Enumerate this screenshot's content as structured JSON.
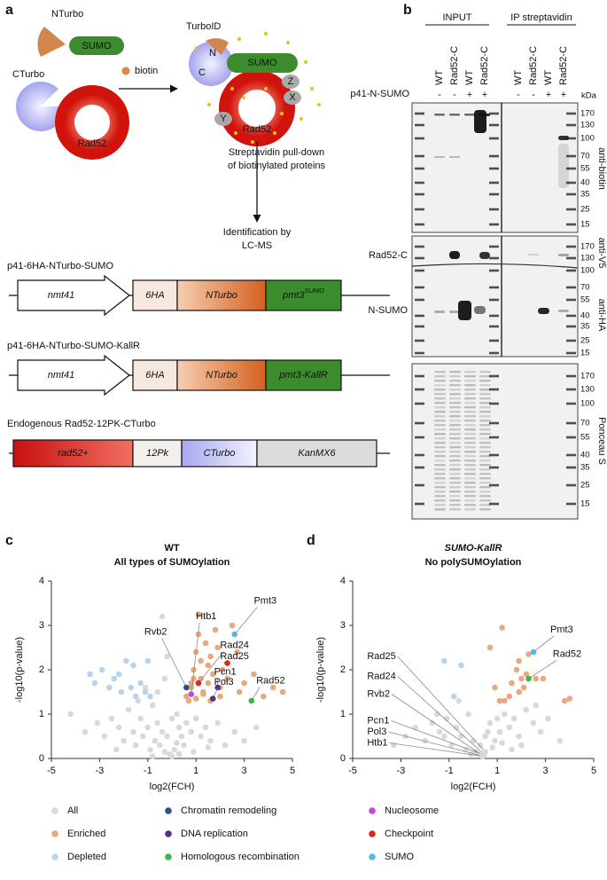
{
  "panel_a": {
    "label": "a",
    "nturbo": "NTurbo",
    "sumo": "SUMO",
    "cturbo": "CTurbo",
    "rad52": "Rad52",
    "biotin": "biotin",
    "turboid": "TurboID",
    "complex": {
      "n": "N",
      "c": "C",
      "sumo": "SUMO",
      "z": "Z",
      "x": "X",
      "y": "Y",
      "rad52": "Rad52"
    },
    "pulldown": [
      "Streptavidin pull-down",
      "of biotinylated proteins"
    ],
    "identification": [
      "Identification by",
      "LC-MS"
    ],
    "constructs": [
      {
        "title": "p41-6HA-NTurbo-SUMO",
        "parts": [
          "nmt41",
          "6HA",
          "NTurbo",
          "pmt3"
        ],
        "sup": "SUMO"
      },
      {
        "title": "p41-6HA-NTurbo-SUMO-KallR",
        "parts": [
          "nmt41",
          "6HA",
          "NTurbo",
          "pmt3-KallR"
        ]
      },
      {
        "title": "Endogenous Rad52-12PK-CTurbo",
        "parts": [
          "rad52+",
          "12Pk",
          "CTurbo",
          "KanMX6"
        ]
      }
    ]
  },
  "panel_b": {
    "label": "b",
    "input": "INPUT",
    "ip": "IP streptavidin",
    "input_lanes": [
      "WT",
      "Rad52-C",
      "WT",
      "Rad52-C"
    ],
    "ip_lanes": [
      "WT",
      "Rad52-C",
      "WT",
      "Rad52-C"
    ],
    "p41_label": "p41-N-SUMO",
    "input_signs": [
      "-",
      "-",
      "+",
      "+"
    ],
    "ip_signs": [
      "-",
      "-",
      "+",
      "+"
    ],
    "kda": "kDa",
    "markers": [
      [
        170,
        130,
        100,
        70,
        55,
        40,
        35,
        25,
        15
      ],
      [
        170,
        130,
        100,
        70,
        55,
        40,
        35,
        25,
        15
      ],
      [
        170,
        130,
        100,
        70,
        55,
        40,
        35,
        25,
        15
      ]
    ],
    "antibodies": [
      "anti-biotin",
      "anti-V5",
      "anti-HA",
      "Ponceau S"
    ],
    "band_labels": [
      "Rad52-C",
      "N-SUMO"
    ]
  },
  "chart_data": [
    {
      "type": "scatter",
      "panel": "c",
      "title": "WT",
      "subtitle": "All types of SUMOylation",
      "xlabel": "log2(FCH)",
      "ylabel": "-log10(p-value)",
      "xlim": [
        -5,
        5
      ],
      "xticks": [
        -5,
        -3,
        -1,
        1,
        3,
        5
      ],
      "ylim": [
        0,
        4
      ],
      "yticks": [
        0,
        1,
        2,
        3,
        4
      ],
      "series": [
        {
          "name": "All",
          "color": "#d9d9d9",
          "x": [
            -4.2,
            -3.6,
            -3.1,
            -2.8,
            -2.5,
            -2.2,
            -2.0,
            -1.8,
            -1.6,
            -1.5,
            -1.3,
            -1.2,
            -1.0,
            -0.9,
            -0.8,
            -0.7,
            -0.6,
            -0.5,
            -0.4,
            -0.3,
            -0.2,
            -0.1,
            0.0,
            0.1,
            0.2,
            0.3,
            0.4,
            0.5,
            -0.6,
            -0.3,
            0.2,
            0.6,
            0.8,
            1.0,
            1.2,
            1.4,
            1.6,
            1.9,
            2.2,
            2.6,
            3.0,
            3.5,
            -1.4,
            -2.3,
            0.3,
            -0.8,
            0.9,
            -1.1,
            1.5,
            -0.4,
            0.0,
            -0.2
          ],
          "y": [
            1.0,
            0.6,
            0.8,
            0.5,
            0.9,
            0.7,
            0.4,
            1.1,
            0.6,
            0.3,
            0.9,
            0.5,
            0.7,
            0.2,
            1.2,
            0.4,
            0.8,
            0.3,
            0.6,
            0.15,
            0.5,
            0.1,
            0.05,
            0.2,
            0.35,
            0.1,
            0.5,
            0.3,
            1.5,
            1.8,
            1.0,
            0.8,
            0.6,
            0.9,
            0.5,
            0.7,
            0.4,
            0.8,
            0.3,
            0.6,
            0.4,
            0.7,
            1.3,
            0.2,
            0.7,
            0.05,
            0.15,
            1.6,
            0.25,
            3.2,
            0.9,
            2.3
          ]
        },
        {
          "name": "Enriched",
          "color": "#e8a97e",
          "x": [
            0.6,
            0.8,
            0.9,
            1.0,
            1.1,
            1.2,
            1.3,
            1.4,
            1.5,
            1.6,
            1.7,
            1.8,
            2.0,
            2.1,
            2.3,
            2.5,
            2.7,
            3.0,
            3.4,
            3.8,
            4.2,
            4.6,
            0.7,
            1.0,
            1.3,
            0.9,
            1.2,
            1.6,
            2.0,
            1.5,
            0.8,
            1.1,
            1.9,
            2.8
          ],
          "y": [
            1.4,
            1.6,
            2.0,
            2.4,
            3.25,
            1.8,
            1.5,
            2.6,
            1.7,
            2.3,
            1.9,
            2.9,
            1.6,
            2.0,
            1.8,
            3.0,
            2.4,
            1.7,
            1.9,
            1.4,
            1.6,
            1.5,
            1.3,
            1.35,
            1.45,
            1.8,
            2.2,
            1.3,
            1.4,
            2.1,
            1.7,
            2.8,
            2.5,
            1.5
          ]
        },
        {
          "name": "Depleted",
          "color": "#b7d4ec",
          "x": [
            -3.4,
            -3.2,
            -2.9,
            -2.6,
            -2.4,
            -2.1,
            -1.9,
            -1.7,
            -1.5,
            -1.3,
            -1.1,
            -0.9,
            -1.6,
            -2.2,
            -1.0
          ],
          "y": [
            1.9,
            1.7,
            2.0,
            1.6,
            1.8,
            1.5,
            2.2,
            1.6,
            1.4,
            1.7,
            1.5,
            1.4,
            2.1,
            1.9,
            2.2
          ]
        },
        {
          "name": "Chromatin remodeling",
          "color": "#2e4d8c",
          "labels": [
            "Rvb2"
          ],
          "x": [
            0.6
          ],
          "y": [
            1.6
          ]
        },
        {
          "name": "DNA replication",
          "color": "#5a2d8c",
          "labels": [
            "Pcn1",
            "Pol3"
          ],
          "x": [
            1.9,
            1.7
          ],
          "y": [
            1.6,
            1.35
          ]
        },
        {
          "name": "Homologous recombination",
          "color": "#3db54a",
          "labels": [
            "Rad52"
          ],
          "x": [
            3.3
          ],
          "y": [
            1.3
          ]
        },
        {
          "name": "Nucleosome",
          "color": "#c446e6",
          "labels": [
            "Htb1"
          ],
          "x": [
            0.8
          ],
          "y": [
            1.45
          ]
        },
        {
          "name": "Checkpoint",
          "color": "#e3261b",
          "labels": [
            "Rad24",
            "Rad25"
          ],
          "x": [
            1.1,
            2.3
          ],
          "y": [
            1.7,
            2.15
          ]
        },
        {
          "name": "SUMO",
          "color": "#5cb6e8",
          "labels": [
            "Pmt3"
          ],
          "x": [
            2.6
          ],
          "y": [
            2.8
          ]
        }
      ]
    },
    {
      "type": "scatter",
      "panel": "d",
      "title": "SUMO-KallR",
      "title_italic": true,
      "subtitle": "No polySUMOylation",
      "xlabel": "log2(FCH)",
      "ylabel": "-log10(p-value)",
      "xlim": [
        -5,
        5
      ],
      "xticks": [
        -5,
        -3,
        -1,
        1,
        3,
        5
      ],
      "ylim": [
        0,
        4
      ],
      "yticks": [
        0,
        1,
        2,
        3,
        4
      ],
      "series": [
        {
          "color": "#d9d9d9",
          "x": [
            -3.3,
            -2.8,
            -2.4,
            -2.0,
            -1.7,
            -1.4,
            -1.1,
            -0.9,
            -0.7,
            -0.5,
            -0.3,
            -0.1,
            0.1,
            0.3,
            0.5,
            0.7,
            0.9,
            1.1,
            1.3,
            1.5,
            1.7,
            1.9,
            2.2,
            2.5,
            2.8,
            3.1,
            3.6,
            -0.6,
            -0.2,
            0.4,
            0.8,
            1.2,
            1.6,
            -1.2,
            2.0,
            2.6,
            -1.5,
            0.0,
            0.6,
            1.0
          ],
          "y": [
            0.3,
            0.5,
            0.7,
            0.4,
            0.8,
            0.6,
            0.9,
            0.3,
            0.7,
            0.5,
            0.2,
            0.1,
            0.15,
            0.3,
            0.5,
            0.8,
            0.4,
            0.6,
            1.0,
            0.7,
            0.9,
            0.5,
            1.1,
            0.8,
            0.6,
            0.9,
            0.4,
            1.3,
            1.0,
            0.05,
            0.25,
            0.35,
            0.2,
            0.5,
            0.3,
            1.2,
            1.0,
            0.4,
            0.6,
            0.9
          ]
        },
        {
          "color": "#e8a97e",
          "x": [
            1.2,
            0.7,
            1.9,
            2.0,
            2.3,
            2.6,
            1.6,
            1.9,
            2.1,
            2.9,
            3.8,
            4.0,
            1.3,
            1.1,
            1.5,
            0.9,
            2.2,
            1.8
          ],
          "y": [
            2.95,
            2.5,
            2.2,
            1.8,
            2.35,
            1.8,
            1.7,
            1.5,
            1.6,
            1.8,
            1.3,
            1.35,
            1.3,
            1.3,
            1.4,
            1.6,
            1.9,
            2.0
          ]
        },
        {
          "color": "#b7d4ec",
          "x": [
            -1.2,
            -0.5,
            -0.8
          ],
          "y": [
            2.2,
            2.1,
            1.4
          ]
        },
        {
          "color": "#2e4d8c",
          "marker_color": "#d9d9d9",
          "labels": [
            "Rvb2"
          ],
          "x": [
            0.3
          ],
          "y": [
            0.1
          ]
        },
        {
          "color": "#5a2d8c",
          "marker_color": "#d9d9d9",
          "labels": [
            "Pcn1",
            "Pol3"
          ],
          "x": [
            0.45,
            0.35
          ],
          "y": [
            0.08,
            0.06
          ]
        },
        {
          "color": "#3db54a",
          "labels": [
            "Rad52"
          ],
          "x": [
            2.3
          ],
          "y": [
            1.8
          ]
        },
        {
          "color": "#c446e6",
          "marker_color": "#d9d9d9",
          "labels": [
            "Htb1"
          ],
          "x": [
            0.4
          ],
          "y": [
            0.05
          ]
        },
        {
          "color": "#e3261b",
          "marker_color": "#d9d9d9",
          "labels": [
            "Rad25",
            "Rad24"
          ],
          "x": [
            0.5,
            0.4
          ],
          "y": [
            0.15,
            0.12
          ]
        },
        {
          "color": "#5cb6e8",
          "labels": [
            "Pmt3"
          ],
          "x": [
            2.5
          ],
          "y": [
            2.4
          ]
        }
      ]
    }
  ]
}
